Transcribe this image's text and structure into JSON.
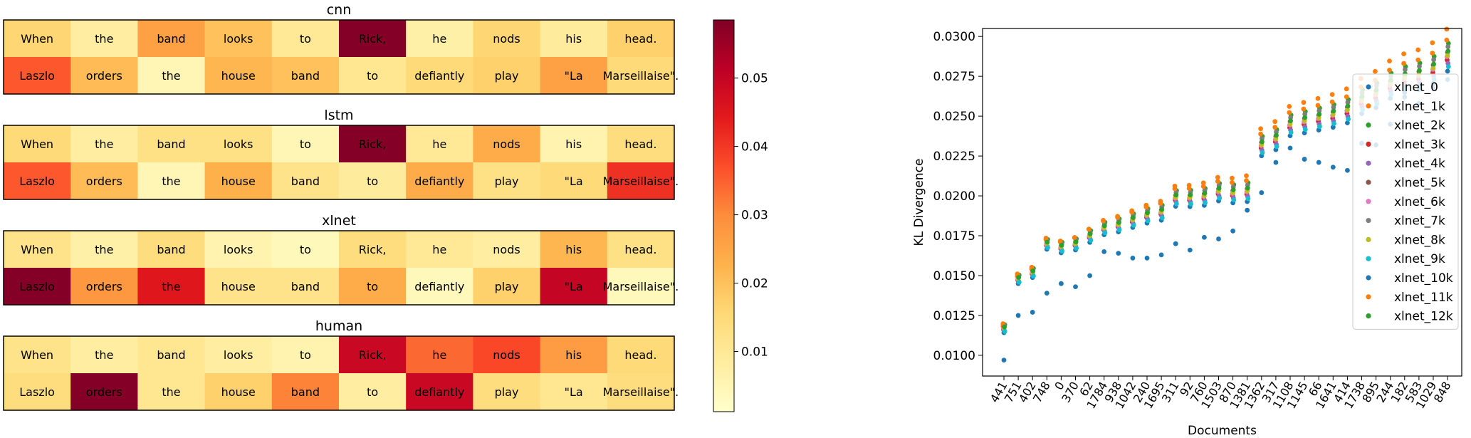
{
  "chart_data": [
    {
      "type": "heatmap",
      "panels": [
        {
          "title": "cnn",
          "rows": [
            [
              "When",
              "the",
              "band",
              "looks",
              "to",
              "Rick,",
              "he",
              "nods",
              "his",
              "head."
            ],
            [
              "Laszlo",
              "orders",
              "the",
              "house",
              "band",
              "to",
              "defiantly",
              "play",
              "\"La",
              "Marseillaise\"."
            ]
          ],
          "values": [
            [
              0.016,
              0.008,
              0.026,
              0.02,
              0.01,
              0.058,
              0.007,
              0.016,
              0.009,
              0.017
            ],
            [
              0.036,
              0.021,
              0.005,
              0.022,
              0.02,
              0.011,
              0.015,
              0.017,
              0.026,
              0.015
            ]
          ]
        },
        {
          "title": "lstm",
          "rows": [
            [
              "When",
              "the",
              "band",
              "looks",
              "to",
              "Rick,",
              "he",
              "nods",
              "his",
              "head."
            ],
            [
              "Laszlo",
              "orders",
              "the",
              "house",
              "band",
              "to",
              "defiantly",
              "play",
              "\"La",
              "Marseillaise\"."
            ]
          ],
          "values": [
            [
              0.015,
              0.008,
              0.013,
              0.013,
              0.005,
              0.058,
              0.01,
              0.024,
              0.006,
              0.014
            ],
            [
              0.036,
              0.021,
              0.005,
              0.023,
              0.012,
              0.009,
              0.024,
              0.013,
              0.015,
              0.041
            ]
          ]
        },
        {
          "title": "xlnet",
          "rows": [
            [
              "When",
              "the",
              "band",
              "looks",
              "to",
              "Rick,",
              "he",
              "nods",
              "his",
              "head."
            ],
            [
              "Laszlo",
              "orders",
              "the",
              "house",
              "band",
              "to",
              "defiantly",
              "play",
              "\"La",
              "Marseillaise\"."
            ]
          ],
          "values": [
            [
              0.012,
              0.007,
              0.014,
              0.006,
              0.004,
              0.014,
              0.01,
              0.008,
              0.022,
              0.013
            ],
            [
              0.058,
              0.028,
              0.045,
              0.012,
              0.012,
              0.024,
              0.004,
              0.017,
              0.05,
              0.004
            ]
          ]
        },
        {
          "title": "human",
          "rows": [
            [
              "When",
              "the",
              "band",
              "looks",
              "to",
              "Rick,",
              "he",
              "nods",
              "his",
              "head."
            ],
            [
              "Laszlo",
              "orders",
              "the",
              "house",
              "band",
              "to",
              "defiantly",
              "play",
              "\"La",
              "Marseillaise\"."
            ]
          ],
          "values": [
            [
              0.012,
              0.008,
              0.011,
              0.008,
              0.006,
              0.049,
              0.034,
              0.038,
              0.027,
              0.015
            ],
            [
              0.014,
              0.058,
              0.011,
              0.017,
              0.031,
              0.008,
              0.049,
              0.014,
              0.011,
              0.014
            ]
          ]
        }
      ],
      "colorbar": {
        "ticks": [
          0.01,
          0.02,
          0.03,
          0.04,
          0.05
        ],
        "range": [
          0.0012,
          0.0585
        ],
        "colormap": "YlOrRd"
      }
    },
    {
      "type": "scatter",
      "xlabel": "Documents",
      "ylabel": "KL Divergence",
      "ylim": [
        0.0087,
        0.0305
      ],
      "yticks": [
        0.01,
        0.0125,
        0.015,
        0.0175,
        0.02,
        0.0225,
        0.025,
        0.0275,
        0.03
      ],
      "ytick_labels": [
        "0.0100",
        "0.0125",
        "0.0150",
        "0.0175",
        "0.0200",
        "0.0225",
        "0.0250",
        "0.0275",
        "0.0300"
      ],
      "categories": [
        "441",
        "751",
        "402",
        "748",
        "0",
        "370",
        "62",
        "1784",
        "938",
        "1042",
        "240",
        "1695",
        "311",
        "92",
        "760",
        "1503",
        "870",
        "1381",
        "1362",
        "317",
        "1108",
        "1145",
        "66",
        "1641",
        "414",
        "1738",
        "895",
        "244",
        "182",
        "583",
        "1029",
        "848"
      ],
      "base": [
        0.0117,
        0.0148,
        0.0152,
        0.017,
        0.0168,
        0.017,
        0.0175,
        0.018,
        0.0182,
        0.0185,
        0.0188,
        0.019,
        0.0199,
        0.0199,
        0.02,
        0.0203,
        0.0202,
        0.0203,
        0.0232,
        0.0236,
        0.0245,
        0.0247,
        0.0249,
        0.0251,
        0.0254,
        0.026,
        0.0264,
        0.027,
        0.0274,
        0.0276,
        0.028,
        0.0288
      ],
      "outlier": [
        0.0097,
        0.0125,
        0.0127,
        0.0139,
        0.0145,
        0.0143,
        0.015,
        0.0165,
        0.0164,
        0.0161,
        0.0161,
        0.0163,
        0.017,
        0.0166,
        0.0174,
        0.0173,
        0.0178,
        0.0191,
        0.0202,
        0.0221,
        0.023,
        0.0223,
        0.0221,
        0.0218,
        0.0216,
        0.0233,
        0.0232,
        0.0245,
        0.0262,
        0.0258,
        0.0268,
        0.0273
      ],
      "legend_position": "right",
      "series": [
        {
          "name": "xlnet_0",
          "color": "#1f77b4"
        },
        {
          "name": "xlnet_1k",
          "color": "#ff7f0e"
        },
        {
          "name": "xlnet_2k",
          "color": "#2ca02c"
        },
        {
          "name": "xlnet_3k",
          "color": "#d62728"
        },
        {
          "name": "xlnet_4k",
          "color": "#9467bd"
        },
        {
          "name": "xlnet_5k",
          "color": "#8c564b"
        },
        {
          "name": "xlnet_6k",
          "color": "#e377c2"
        },
        {
          "name": "xlnet_7k",
          "color": "#7f7f7f"
        },
        {
          "name": "xlnet_8k",
          "color": "#bcbd22"
        },
        {
          "name": "xlnet_9k",
          "color": "#17becf"
        },
        {
          "name": "xlnet_10k",
          "color": "#1f77b4"
        },
        {
          "name": "xlnet_11k",
          "color": "#ff7f0e"
        },
        {
          "name": "xlnet_12k",
          "color": "#2ca02c"
        }
      ]
    }
  ]
}
